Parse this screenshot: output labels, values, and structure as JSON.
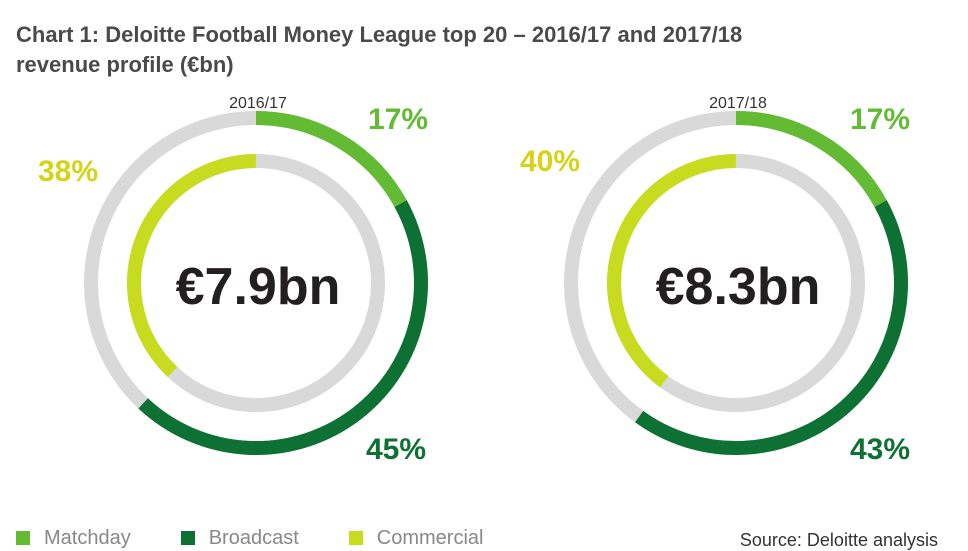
{
  "title_line1": "Chart 1: Deloitte Football Money League top 20 – 2016/17 and 2017/18",
  "title_line2": "revenue profile (€bn)",
  "colors": {
    "matchday": "#62bb33",
    "broadcast": "#0e7134",
    "commercial": "#c8dc1f",
    "track": "#d9d9d9"
  },
  "chart_data": [
    {
      "type": "pie",
      "period": "2016/17",
      "total": "€7.9bn",
      "categories": [
        "Matchday",
        "Broadcast",
        "Commercial"
      ],
      "values": [
        17,
        45,
        38
      ],
      "labels": [
        "17%",
        "45%",
        "38%"
      ]
    },
    {
      "type": "pie",
      "period": "2017/18",
      "total": "€8.3bn",
      "categories": [
        "Matchday",
        "Broadcast",
        "Commercial"
      ],
      "values": [
        17,
        43,
        40
      ],
      "labels": [
        "17%",
        "43%",
        "40%"
      ]
    }
  ],
  "legend": [
    "Matchday",
    "Broadcast",
    "Commercial"
  ],
  "source": "Source: Deloitte analysis"
}
